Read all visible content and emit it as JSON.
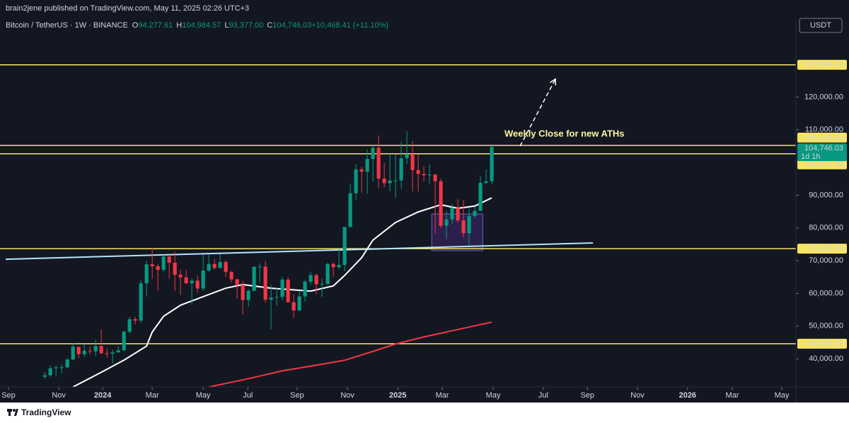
{
  "header": {
    "publisher": "brain2jene published on TradingView.com, May 11, 2025 02:26 UTC+3",
    "footer_logo": "TradingView"
  },
  "chart_data": {
    "type": "candlestick",
    "title": "Bitcoin / TetherUS · 1W · BINANCE",
    "ohlc_legend": [
      {
        "key": "O",
        "text": "94,277.61"
      },
      {
        "key": "H",
        "text": "104,984.57"
      },
      {
        "key": "L",
        "text": "93,377.00"
      },
      {
        "key": "C",
        "text": "104,746.03"
      },
      {
        "key": "",
        "text": "+10,468.41 (+11.10%)"
      }
    ],
    "currency": "USDT",
    "annotation": "Weekly Close for new ATHs",
    "up_color": "#089981",
    "down_color": "#f23645",
    "level_color": "#f7e463",
    "xlim": [
      -6.9,
      132.75
    ],
    "xticks": [
      {
        "value": -6.4,
        "label": "Sep"
      },
      {
        "value": 2.5,
        "label": "Nov"
      },
      {
        "value": 10.25,
        "label": "2024"
      },
      {
        "value": 19,
        "label": "Mar"
      },
      {
        "value": 28,
        "label": "May"
      },
      {
        "value": 35.9,
        "label": "Jul"
      },
      {
        "value": 44.6,
        "label": "Sep"
      },
      {
        "value": 53.5,
        "label": "Nov"
      },
      {
        "value": 62.4,
        "label": "2025"
      },
      {
        "value": 70.25,
        "label": "Mar"
      },
      {
        "value": 79.25,
        "label": "May"
      },
      {
        "value": 88.1,
        "label": "Jul"
      },
      {
        "value": 95.9,
        "label": "Sep"
      },
      {
        "value": 104.75,
        "label": "Nov"
      },
      {
        "value": 113.6,
        "label": "2026"
      },
      {
        "value": 121.5,
        "label": "Mar"
      },
      {
        "value": 130.25,
        "label": "May"
      }
    ],
    "ylim": [
      31400,
      143200
    ],
    "yticks": [
      {
        "value": 40000,
        "label": "40,000.00"
      },
      {
        "value": 50000,
        "label": "50,000.00"
      },
      {
        "value": 60000,
        "label": "60,000.00"
      },
      {
        "value": 70000,
        "label": "70,000.00"
      },
      {
        "value": 80000,
        "label": "80,000.00"
      },
      {
        "value": 90000,
        "label": "90,000.00"
      },
      {
        "value": 110000,
        "label": "110,000.00"
      },
      {
        "value": 120000,
        "label": "120,000.00"
      }
    ],
    "x": [
      0,
      1,
      2,
      3,
      4,
      5,
      6,
      7,
      8,
      9,
      10,
      11,
      12,
      13,
      14,
      15,
      16,
      17,
      18,
      19,
      20,
      21,
      22,
      23,
      24,
      25,
      26,
      27,
      28,
      29,
      30,
      31,
      32,
      33,
      34,
      35,
      36,
      37,
      38,
      39,
      40,
      41,
      42,
      43,
      44,
      45,
      46,
      47,
      48,
      49,
      50,
      51,
      52,
      53,
      54,
      55,
      56,
      57,
      58,
      59,
      60,
      61,
      62,
      63,
      64,
      65,
      66,
      67,
      68,
      69,
      70,
      71,
      72,
      73,
      74,
      75,
      76,
      77,
      78,
      79
    ],
    "open": [
      34500,
      35000,
      37100,
      37400,
      37400,
      39800,
      43700,
      41400,
      42500,
      42300,
      43900,
      41700,
      41600,
      42000,
      42600,
      48300,
      52100,
      51700,
      63100,
      68900,
      68300,
      67200,
      71300,
      69400,
      65700,
      64900,
      63100,
      63900,
      61500,
      67000,
      69000,
      67800,
      69600,
      66600,
      64300,
      62600,
      58000,
      60800,
      68100,
      68200,
      58100,
      58700,
      58900,
      64200,
      57300,
      54800,
      59100,
      63600,
      65600,
      62800,
      62900,
      69000,
      68000,
      68700,
      80300,
      90600,
      97900,
      97200,
      101100,
      104500,
      95100,
      93700,
      94500,
      94500,
      101300,
      102600,
      97700,
      96500,
      96100,
      96300,
      94300,
      80700,
      82600,
      86100,
      82300,
      78400,
      83700,
      85200,
      93800,
      94277.61
    ],
    "high": [
      36000,
      38000,
      38000,
      38400,
      40200,
      44700,
      43700,
      44400,
      43800,
      45900,
      49000,
      43200,
      42800,
      43900,
      48600,
      52800,
      52900,
      64000,
      70000,
      73800,
      68900,
      71800,
      71300,
      72800,
      67200,
      67100,
      64700,
      65500,
      71900,
      71900,
      70600,
      72000,
      70200,
      66900,
      64500,
      63800,
      61400,
      68300,
      69200,
      70000,
      62700,
      61800,
      65000,
      64900,
      59800,
      60600,
      64100,
      66500,
      66000,
      64500,
      69400,
      69500,
      73600,
      80300,
      93400,
      99600,
      98700,
      104000,
      105200,
      108300,
      99900,
      102700,
      102500,
      106400,
      109600,
      106500,
      102500,
      98800,
      99500,
      96500,
      95000,
      85300,
      87400,
      88800,
      88500,
      86100,
      86400,
      95800,
      97900,
      104984.57
    ],
    "low": [
      33900,
      34500,
      34800,
      35600,
      37100,
      39500,
      40200,
      40500,
      41300,
      40800,
      41500,
      40300,
      38500,
      41800,
      42300,
      47700,
      50500,
      50900,
      59000,
      64500,
      60800,
      66400,
      64500,
      60700,
      59600,
      62800,
      56500,
      60200,
      60800,
      66600,
      67200,
      67600,
      65000,
      63400,
      58400,
      53500,
      55900,
      60600,
      63400,
      57100,
      49000,
      56200,
      57800,
      57200,
      52500,
      54600,
      57500,
      62700,
      59800,
      58900,
      62500,
      65100,
      67500,
      66800,
      80300,
      88600,
      90800,
      90500,
      94200,
      92200,
      92500,
      91200,
      89200,
      92000,
      99500,
      91200,
      91200,
      94100,
      93400,
      78300,
      80000,
      76600,
      81200,
      81600,
      77100,
      74500,
      83100,
      85100,
      93400,
      93377
    ],
    "close": [
      35000,
      37100,
      37400,
      37400,
      39800,
      43700,
      41400,
      42500,
      42300,
      43900,
      41700,
      41600,
      42000,
      42600,
      48300,
      52100,
      51700,
      63100,
      68900,
      68300,
      67200,
      71300,
      69400,
      65700,
      64900,
      63100,
      63900,
      61500,
      67000,
      69000,
      67800,
      69600,
      66600,
      64300,
      62600,
      58000,
      60800,
      68100,
      68200,
      58100,
      58700,
      58900,
      64200,
      57300,
      54800,
      59100,
      63600,
      65600,
      62800,
      62900,
      69000,
      68000,
      68700,
      80300,
      90600,
      97900,
      97200,
      101100,
      104500,
      95100,
      93700,
      94500,
      94500,
      101300,
      102600,
      97700,
      96500,
      96100,
      96300,
      94300,
      80700,
      82600,
      86100,
      82300,
      78400,
      83700,
      85200,
      93800,
      94277.61,
      104746.03
    ],
    "lines": [
      {
        "color": "#ffffff",
        "x": [
          5,
          10,
          14,
          18,
          19,
          21,
          24,
          28,
          32,
          35,
          40,
          43,
          47,
          51,
          53,
          56,
          58,
          62,
          66,
          70,
          73,
          76,
          79
        ],
        "values": [
          31400,
          35900,
          39600,
          43900,
          48200,
          53000,
          56400,
          59000,
          61600,
          62700,
          61600,
          61200,
          60700,
          62300,
          65500,
          70900,
          76300,
          81700,
          84900,
          87100,
          86000,
          86700,
          89200
        ]
      },
      {
        "color": "#f23645",
        "x": [
          29,
          36,
          42,
          48,
          53,
          57,
          62,
          67,
          71,
          75,
          79
        ],
        "values": [
          31400,
          33950,
          36330,
          38060,
          39570,
          41730,
          44540,
          46700,
          48210,
          49730,
          51230
        ]
      }
    ],
    "levels": [
      {
        "value": 129864.48,
        "label": "129,864.48"
      },
      {
        "value": 105229.0,
        "label": "105,229.00"
      },
      {
        "value": 102671.38,
        "label": "102,671.38"
      },
      {
        "value": 73682.96,
        "label": "73,682.96"
      },
      {
        "value": 44626.25,
        "label": "44,626.25"
      }
    ],
    "last_price": {
      "value": 104746.03,
      "label": "104,746.03",
      "countdown": "1d 1h"
    },
    "drawings": {
      "trendline": {
        "color": "#b3e5fc",
        "x": [
          -6.9,
          96.9
        ],
        "values": [
          70450,
          75420
        ]
      },
      "box": {
        "x": [
          68.4,
          77.4
        ],
        "values": [
          84280,
          73050
        ]
      },
      "arrow": {
        "x": [
          84,
          90.25
        ],
        "values": [
          105010,
          125530
        ]
      }
    }
  }
}
